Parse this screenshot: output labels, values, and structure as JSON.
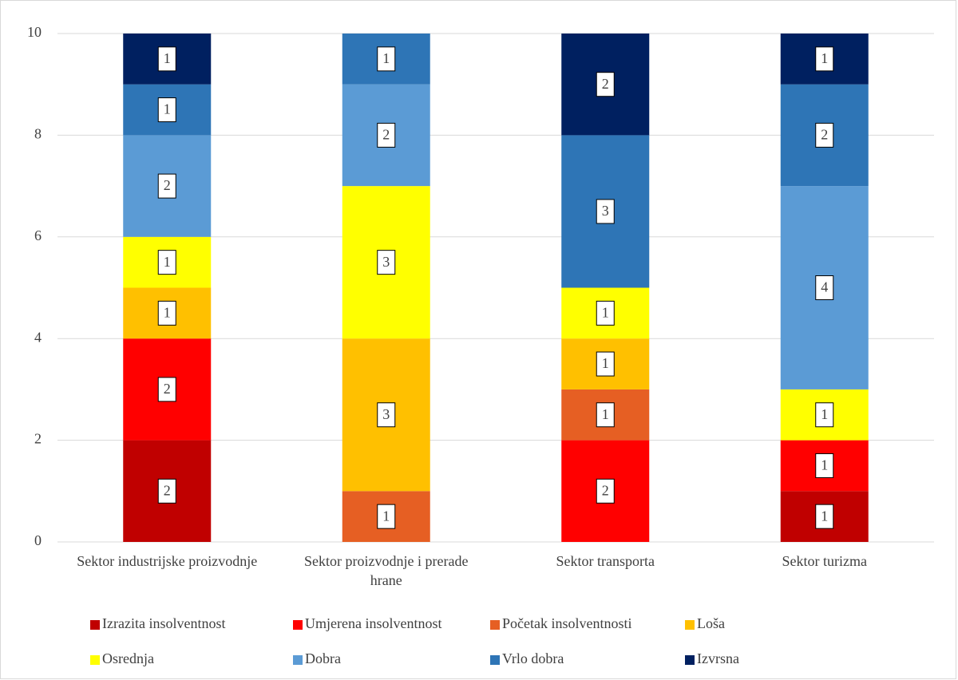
{
  "chart_data": {
    "type": "stacked_bar",
    "categories": [
      "Sektor industrijske proizvodnje",
      "Sektor proizvodnje i prerade hrane",
      "Sektor transporta",
      "Sektor turizma"
    ],
    "series": [
      {
        "name": "Izrazita insolventnost",
        "color": "#c00000",
        "values": [
          2,
          null,
          null,
          1
        ]
      },
      {
        "name": "Umjerena insolventnost",
        "color": "#ff0000",
        "values": [
          2,
          null,
          2,
          1
        ]
      },
      {
        "name": "Početak insolventnosti",
        "color": "#e65f23",
        "values": [
          null,
          1,
          1,
          null
        ]
      },
      {
        "name": "Loša",
        "color": "#ffc000",
        "values": [
          1,
          3,
          1,
          null
        ]
      },
      {
        "name": "Osrednja",
        "color": "#ffff00",
        "values": [
          1,
          3,
          1,
          1
        ]
      },
      {
        "name": "Dobra",
        "color": "#5b9bd5",
        "values": [
          2,
          2,
          null,
          4
        ]
      },
      {
        "name": "Vrlo dobra",
        "color": "#2e75b6",
        "values": [
          1,
          1,
          3,
          2
        ]
      },
      {
        "name": "Izvrsna",
        "color": "#002060",
        "values": [
          1,
          null,
          2,
          1
        ]
      }
    ],
    "ylim": [
      0,
      10
    ],
    "yticks": [
      0,
      2,
      4,
      6,
      8,
      10
    ],
    "grid": true,
    "legend": "bottom"
  }
}
